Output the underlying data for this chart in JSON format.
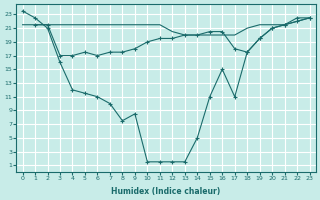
{
  "xlabel": "Humidex (Indice chaleur)",
  "bg_color": "#c8ece8",
  "grid_color": "#ffffff",
  "line_color": "#1a6b6b",
  "xlim": [
    -0.5,
    23.5
  ],
  "ylim": [
    0,
    24.5
  ],
  "xticks": [
    0,
    1,
    2,
    3,
    4,
    5,
    6,
    7,
    8,
    9,
    10,
    11,
    12,
    13,
    14,
    15,
    16,
    17,
    18,
    19,
    20,
    21,
    22,
    23
  ],
  "yticks": [
    1,
    3,
    5,
    7,
    9,
    11,
    13,
    15,
    17,
    19,
    21,
    23
  ],
  "line1_x": [
    0,
    1,
    2,
    3,
    4,
    5,
    6,
    7,
    8,
    9,
    10,
    11,
    12,
    13,
    14,
    15,
    16,
    17,
    18,
    19,
    20,
    21,
    22,
    23
  ],
  "line1_y": [
    23.5,
    22.5,
    21,
    16,
    12,
    11.5,
    11,
    10,
    7.5,
    8.5,
    1.5,
    1.5,
    1.5,
    1.5,
    5,
    11,
    15,
    11,
    17.5,
    19.5,
    21,
    21.5,
    22.5,
    22.5
  ],
  "line2_x": [
    0,
    1,
    2,
    3,
    4,
    5,
    6,
    7,
    8,
    9,
    10,
    11,
    12,
    13,
    14,
    15,
    16,
    17,
    18,
    19,
    20,
    21,
    22,
    23
  ],
  "line2_y": [
    21.5,
    21.5,
    21.5,
    21.5,
    21.5,
    21.5,
    21.5,
    21.5,
    21.5,
    21.5,
    21.5,
    21.5,
    20.5,
    20,
    20,
    20,
    20,
    20,
    21,
    21.5,
    21.5,
    21.5,
    22,
    22.5
  ],
  "line3_x": [
    1,
    2,
    3,
    4,
    5,
    6,
    7,
    8,
    9,
    10,
    11,
    12,
    13,
    14,
    15,
    16,
    17,
    18,
    19,
    20,
    21,
    22,
    23
  ],
  "line3_y": [
    21.5,
    21.5,
    17,
    17,
    17.5,
    17,
    17.5,
    17.5,
    18,
    19,
    19.5,
    19.5,
    20,
    20,
    20.5,
    20.5,
    18,
    17.5,
    19.5,
    21,
    21.5,
    22,
    22.5
  ]
}
